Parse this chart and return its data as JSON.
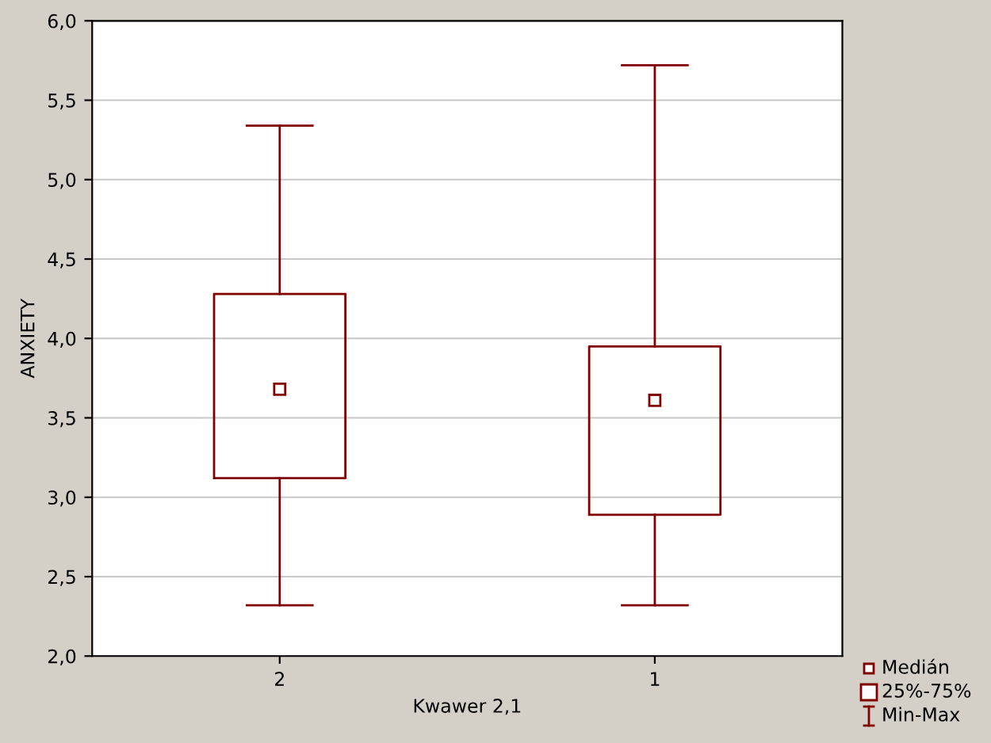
{
  "chart_data": {
    "type": "box",
    "xlabel": "Kwawer 2,1",
    "ylabel": "ANXIETY",
    "categories": [
      "2",
      "1"
    ],
    "color": "#800000",
    "boxes": [
      {
        "low": 2.32,
        "q1": 3.12,
        "median": 3.68,
        "q3": 4.28,
        "high": 5.34
      },
      {
        "low": 2.32,
        "q1": 2.89,
        "median": 3.61,
        "q3": 3.95,
        "high": 5.72
      }
    ],
    "ylim": [
      2.0,
      6.0
    ],
    "yticks": [
      {
        "value": 2.0,
        "label": "2,0"
      },
      {
        "value": 2.5,
        "label": "2,5"
      },
      {
        "value": 3.0,
        "label": "3,0"
      },
      {
        "value": 3.5,
        "label": "3,5"
      },
      {
        "value": 4.0,
        "label": "4,0"
      },
      {
        "value": 4.5,
        "label": "4,5"
      },
      {
        "value": 5.0,
        "label": "5,0"
      },
      {
        "value": 5.5,
        "label": "5,5"
      },
      {
        "value": 6.0,
        "label": "6,0"
      }
    ],
    "grid": "y",
    "annotations": [
      "Medián",
      "25%-75%",
      "Min-Max"
    ]
  }
}
